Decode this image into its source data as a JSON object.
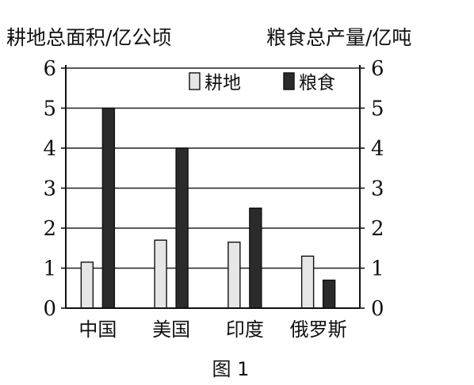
{
  "chart_data": {
    "type": "bar",
    "left_axis_title": "耕地总面积/亿公顷",
    "right_axis_title": "粮食总产量/亿吨",
    "categories": [
      "中国",
      "美国",
      "印度",
      "俄罗斯"
    ],
    "series": [
      {
        "name": "耕地",
        "values": [
          1.15,
          1.7,
          1.65,
          1.3
        ],
        "color": "#e6e6e6"
      },
      {
        "name": "粮食",
        "values": [
          5.0,
          4.0,
          2.5,
          0.7
        ],
        "color": "#2b2b2b"
      }
    ],
    "ylim": [
      0,
      6
    ],
    "yticks": [
      "0",
      "1",
      "2",
      "3",
      "4",
      "5",
      "6"
    ],
    "grid": true,
    "legend": "top-right",
    "caption": "图 1"
  }
}
